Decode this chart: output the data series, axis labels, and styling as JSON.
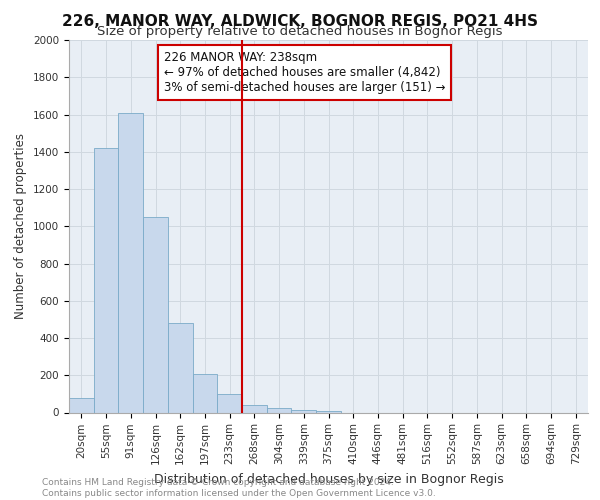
{
  "title1": "226, MANOR WAY, ALDWICK, BOGNOR REGIS, PO21 4HS",
  "title2": "Size of property relative to detached houses in Bognor Regis",
  "xlabel": "Distribution of detached houses by size in Bognor Regis",
  "ylabel": "Number of detached properties",
  "categories": [
    "20sqm",
    "55sqm",
    "91sqm",
    "126sqm",
    "162sqm",
    "197sqm",
    "233sqm",
    "268sqm",
    "304sqm",
    "339sqm",
    "375sqm",
    "410sqm",
    "446sqm",
    "481sqm",
    "516sqm",
    "552sqm",
    "587sqm",
    "623sqm",
    "658sqm",
    "694sqm",
    "729sqm"
  ],
  "values": [
    80,
    1420,
    1610,
    1050,
    480,
    205,
    100,
    40,
    25,
    15,
    10,
    0,
    0,
    0,
    0,
    0,
    0,
    0,
    0,
    0,
    0
  ],
  "bar_color": "#c8d8ec",
  "bar_edge_color": "#7aaac8",
  "vline_x": 6.5,
  "vline_color": "#cc0000",
  "annotation_line1": "226 MANOR WAY: 238sqm",
  "annotation_line2": "← 97% of detached houses are smaller (4,842)",
  "annotation_line3": "3% of semi-detached houses are larger (151) →",
  "annotation_box_color": "#ffffff",
  "annotation_box_edge_color": "#cc0000",
  "ylim": [
    0,
    2000
  ],
  "yticks": [
    0,
    200,
    400,
    600,
    800,
    1000,
    1200,
    1400,
    1600,
    1800,
    2000
  ],
  "grid_color": "#d0d8e0",
  "bg_color": "#e8eef5",
  "footer_text": "Contains HM Land Registry data © Crown copyright and database right 2024.\nContains public sector information licensed under the Open Government Licence v3.0.",
  "title1_fontsize": 11,
  "title2_fontsize": 9.5,
  "xlabel_fontsize": 9,
  "ylabel_fontsize": 8.5,
  "tick_fontsize": 7.5,
  "annotation_fontsize": 8.5,
  "footer_fontsize": 6.5
}
